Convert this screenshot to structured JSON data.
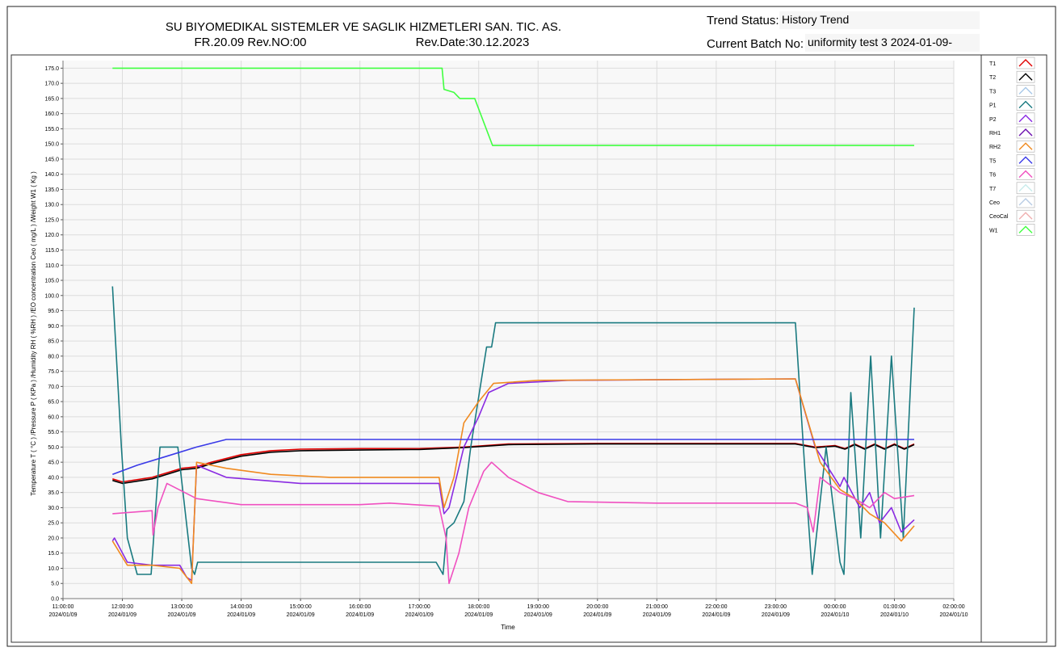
{
  "header": {
    "company": "SU BIYOMEDIKAL SISTEMLER VE SAGLIK HIZMETLERI SAN. TIC. AS.",
    "form": "FR.20.09 Rev.NO:00",
    "rev_date": "Rev.Date:30.12.2023",
    "status_label": "Trend Status:",
    "status_value": "History Trend",
    "batch_label": "Current Batch No:",
    "batch_value": "uniformity test 3 2024-01-09-"
  },
  "chart_data": {
    "type": "line",
    "y_label": "Temperature T ( °C ) /Pressure P ( KPa ) /Humidity RH ( %RH ) /EO concentration Ceo ( mg/L ) /Weight W1 ( Kg )",
    "x_label": "Time",
    "xlim": [
      "2024/01/09 11:00:00",
      "2024/01/10 02:00:00"
    ],
    "xticks": [
      {
        "value": "2024/01/09 11:00:00",
        "label": [
          "11:00:00",
          "2024/01/09"
        ]
      },
      {
        "value": "2024/01/09 12:00:00",
        "label": [
          "12:00:00",
          "2024/01/09"
        ]
      },
      {
        "value": "2024/01/09 13:00:00",
        "label": [
          "13:00:00",
          "2024/01/09"
        ]
      },
      {
        "value": "2024/01/09 14:00:00",
        "label": [
          "14:00:00",
          "2024/01/09"
        ]
      },
      {
        "value": "2024/01/09 15:00:00",
        "label": [
          "15:00:00",
          "2024/01/09"
        ]
      },
      {
        "value": "2024/01/09 16:00:00",
        "label": [
          "16:00:00",
          "2024/01/09"
        ]
      },
      {
        "value": "2024/01/09 17:00:00",
        "label": [
          "17:00:00",
          "2024/01/09"
        ]
      },
      {
        "value": "2024/01/09 18:00:00",
        "label": [
          "18:00:00",
          "2024/01/09"
        ]
      },
      {
        "value": "2024/01/09 19:00:00",
        "label": [
          "19:00:00",
          "2024/01/09"
        ]
      },
      {
        "value": "2024/01/09 20:00:00",
        "label": [
          "20:00:00",
          "2024/01/09"
        ]
      },
      {
        "value": "2024/01/09 21:00:00",
        "label": [
          "21:00:00",
          "2024/01/09"
        ]
      },
      {
        "value": "2024/01/09 22:00:00",
        "label": [
          "22:00:00",
          "2024/01/09"
        ]
      },
      {
        "value": "2024/01/09 23:00:00",
        "label": [
          "23:00:00",
          "2024/01/09"
        ]
      },
      {
        "value": "2024/01/10 00:00:00",
        "label": [
          "00:00:00",
          "2024/01/10"
        ]
      },
      {
        "value": "2024/01/10 01:00:00",
        "label": [
          "01:00:00",
          "2024/01/10"
        ]
      },
      {
        "value": "2024/01/10 02:00:00",
        "label": [
          "02:00:00",
          "2024/01/10"
        ]
      }
    ],
    "ylim": [
      0,
      177.5
    ],
    "yticks": [
      {
        "value": 0,
        "label": "0.0"
      },
      {
        "value": 5,
        "label": "5.0"
      },
      {
        "value": 10,
        "label": "10.0"
      },
      {
        "value": 15,
        "label": "15.0"
      },
      {
        "value": 20,
        "label": "20.0"
      },
      {
        "value": 25,
        "label": "25.0"
      },
      {
        "value": 30,
        "label": "30.0"
      },
      {
        "value": 35,
        "label": "35.0"
      },
      {
        "value": 40,
        "label": "40.0"
      },
      {
        "value": 45,
        "label": "45.0"
      },
      {
        "value": 50,
        "label": "50.0"
      },
      {
        "value": 55,
        "label": "55.0"
      },
      {
        "value": 60,
        "label": "60.0"
      },
      {
        "value": 65,
        "label": "65.0"
      },
      {
        "value": 70,
        "label": "70.0"
      },
      {
        "value": 75,
        "label": "75.0"
      },
      {
        "value": 80,
        "label": "80.0"
      },
      {
        "value": 85,
        "label": "85.0"
      },
      {
        "value": 90,
        "label": "90.0"
      },
      {
        "value": 95,
        "label": "95.0"
      },
      {
        "value": 100,
        "label": "100.0"
      },
      {
        "value": 105,
        "label": "105.0"
      },
      {
        "value": 110,
        "label": "110.0"
      },
      {
        "value": 115,
        "label": "115.0"
      },
      {
        "value": 120,
        "label": "120.0"
      },
      {
        "value": 125,
        "label": "125.0"
      },
      {
        "value": 130,
        "label": "130.0"
      },
      {
        "value": 135,
        "label": "135.0"
      },
      {
        "value": 140,
        "label": "140.0"
      },
      {
        "value": 145,
        "label": "145.0"
      },
      {
        "value": 150,
        "label": "150.0"
      },
      {
        "value": 155,
        "label": "155.0"
      },
      {
        "value": 160,
        "label": "160.0"
      },
      {
        "value": 165,
        "label": "165.0"
      },
      {
        "value": 170,
        "label": "170.0"
      },
      {
        "value": 175,
        "label": "175.0"
      }
    ],
    "grid": true,
    "legend": "right",
    "series": [
      {
        "name": "T1",
        "color": "#e00000",
        "x": [
          "2024/01/09 11:50:00",
          "2024/01/09 12:00:00",
          "2024/01/09 12:30:00",
          "2024/01/09 13:00:00",
          "2024/01/09 13:15:00",
          "2024/01/09 13:30:00",
          "2024/01/09 14:00:00",
          "2024/01/09 14:30:00",
          "2024/01/09 15:00:00",
          "2024/01/09 16:00:00",
          "2024/01/09 17:00:00",
          "2024/01/09 17:45:00",
          "2024/01/09 18:30:00",
          "2024/01/09 20:00:00",
          "2024/01/09 23:20:00",
          "2024/01/09 23:40:00",
          "2024/01/10 00:00:00",
          "2024/01/10 00:10:00",
          "2024/01/10 00:20:00",
          "2024/01/10 00:30:00",
          "2024/01/10 00:40:00",
          "2024/01/10 00:50:00",
          "2024/01/10 01:00:00",
          "2024/01/10 01:10:00",
          "2024/01/10 01:20:00"
        ],
        "values": [
          39.5,
          38.5,
          40,
          43,
          43.5,
          45,
          47.5,
          48.8,
          49.3,
          49.5,
          49.5,
          50,
          51,
          51.2,
          51.2,
          50,
          50.5,
          49.5,
          51,
          49.5,
          51,
          49.5,
          51,
          49.5,
          51
        ]
      },
      {
        "name": "T2",
        "color": "#000000",
        "x": [
          "2024/01/09 11:50:00",
          "2024/01/09 12:00:00",
          "2024/01/09 12:30:00",
          "2024/01/09 13:00:00",
          "2024/01/09 13:15:00",
          "2024/01/09 13:30:00",
          "2024/01/09 14:00:00",
          "2024/01/09 14:30:00",
          "2024/01/09 15:00:00",
          "2024/01/09 16:00:00",
          "2024/01/09 17:00:00",
          "2024/01/09 17:45:00",
          "2024/01/09 18:30:00",
          "2024/01/09 20:00:00",
          "2024/01/09 23:20:00",
          "2024/01/09 23:40:00",
          "2024/01/10 00:00:00",
          "2024/01/10 00:10:00",
          "2024/01/10 00:20:00",
          "2024/01/10 00:30:00",
          "2024/01/10 00:40:00",
          "2024/01/10 00:50:00",
          "2024/01/10 01:00:00",
          "2024/01/10 01:10:00",
          "2024/01/10 01:20:00"
        ],
        "values": [
          39,
          38,
          39.5,
          42.5,
          43,
          44.5,
          47,
          48.3,
          48.8,
          49,
          49.2,
          49.8,
          50.8,
          51,
          51,
          49.8,
          50.3,
          49.3,
          50.8,
          49.3,
          50.8,
          49.3,
          50.8,
          49.3,
          50.8
        ]
      },
      {
        "name": "T3",
        "color": "#a8c8e8",
        "x": [],
        "values": []
      },
      {
        "name": "P1",
        "color": "#1a7a80",
        "x": [
          "2024/01/09 11:50:00",
          "2024/01/09 11:59:00",
          "2024/01/09 12:05:00",
          "2024/01/09 12:15:00",
          "2024/01/09 12:29:00",
          "2024/01/09 12:38:00",
          "2024/01/09 12:56:00",
          "2024/01/09 13:10:00",
          "2024/01/09 13:13:00",
          "2024/01/09 13:16:00",
          "2024/01/09 17:17:00",
          "2024/01/09 17:24:00",
          "2024/01/09 17:28:00",
          "2024/01/09 17:35:00",
          "2024/01/09 17:45:00",
          "2024/01/09 17:52:00",
          "2024/01/09 18:08:00",
          "2024/01/09 18:13:00",
          "2024/01/09 18:17:00",
          "2024/01/09 23:20:00",
          "2024/01/09 23:30:00",
          "2024/01/09 23:37:00",
          "2024/01/09 23:51:00",
          "2024/01/10 00:05:00",
          "2024/01/10 00:09:00",
          "2024/01/10 00:16:00",
          "2024/01/10 00:26:00",
          "2024/01/10 00:36:00",
          "2024/01/10 00:46:00",
          "2024/01/10 00:57:00",
          "2024/01/10 01:09:00",
          "2024/01/10 01:20:00"
        ],
        "values": [
          103,
          50,
          20,
          8,
          8,
          50,
          50,
          10,
          8,
          12,
          12,
          8,
          23,
          25,
          32,
          50,
          83,
          83,
          91,
          91,
          40,
          8,
          50,
          12,
          8,
          68,
          20,
          80,
          20,
          80,
          20,
          96
        ]
      },
      {
        "name": "P2",
        "color": "#8a2be2",
        "x": [
          "2024/01/09 11:50:00",
          "2024/01/09 11:52:00",
          "2024/01/09 12:05:00",
          "2024/01/09 12:30:00",
          "2024/01/09 12:58:00",
          "2024/01/09 13:05:00",
          "2024/01/09 13:10:00",
          "2024/01/09 13:15:00",
          "2024/01/09 13:45:00",
          "2024/01/09 15:00:00",
          "2024/01/09 17:20:00",
          "2024/01/09 17:25:00",
          "2024/01/09 17:30:00",
          "2024/01/09 17:45:00",
          "2024/01/09 18:00:00",
          "2024/01/09 18:10:00",
          "2024/01/09 18:30:00",
          "2024/01/09 19:30:00",
          "2024/01/09 23:20:00",
          "2024/01/09 23:40:00",
          "2024/01/10 00:05:00",
          "2024/01/10 00:09:00",
          "2024/01/10 00:25:00",
          "2024/01/10 00:35:00",
          "2024/01/10 00:45:00",
          "2024/01/10 00:57:00",
          "2024/01/10 01:07:00",
          "2024/01/10 01:20:00"
        ],
        "values": [
          19,
          20,
          12,
          11,
          11,
          7,
          6,
          44,
          40,
          38,
          38,
          28,
          30,
          50,
          60,
          68,
          71,
          72,
          72.5,
          50,
          37,
          40,
          30,
          35,
          25,
          30,
          22,
          26
        ]
      },
      {
        "name": "RH1",
        "color": "#6a0dad",
        "x": [],
        "values": []
      },
      {
        "name": "RH2",
        "color": "#f08a20",
        "x": [
          "2024/01/09 11:50:00",
          "2024/01/09 12:05:00",
          "2024/01/09 12:30:00",
          "2024/01/09 12:58:00",
          "2024/01/09 13:10:00",
          "2024/01/09 13:15:00",
          "2024/01/09 13:45:00",
          "2024/01/09 14:30:00",
          "2024/01/09 15:30:00",
          "2024/01/09 17:20:00",
          "2024/01/09 17:25:00",
          "2024/01/09 17:35:00",
          "2024/01/09 17:45:00",
          "2024/01/09 18:00:00",
          "2024/01/09 18:15:00",
          "2024/01/09 19:00:00",
          "2024/01/09 23:20:00",
          "2024/01/09 23:45:00",
          "2024/01/10 00:05:00",
          "2024/01/10 00:20:00",
          "2024/01/10 00:35:00",
          "2024/01/10 00:50:00",
          "2024/01/10 01:07:00",
          "2024/01/10 01:20:00"
        ],
        "values": [
          19,
          11,
          11,
          10,
          5,
          45,
          43,
          41,
          40,
          40,
          30,
          40,
          58,
          65,
          71,
          72,
          72.5,
          45,
          36,
          33,
          28,
          25,
          19,
          24
        ]
      },
      {
        "name": "T5",
        "color": "#3a3ae8",
        "x": [
          "2024/01/09 11:50:00",
          "2024/01/09 12:15:00",
          "2024/01/09 12:45:00",
          "2024/01/09 13:15:00",
          "2024/01/09 13:45:00",
          "2024/01/09 18:00:00",
          "2024/01/09 23:20:00",
          "2024/01/10 01:20:00"
        ],
        "values": [
          41,
          44,
          47,
          50,
          52.5,
          52.5,
          52.5,
          52.5
        ]
      },
      {
        "name": "T6",
        "color": "#f050c0",
        "x": [
          "2024/01/09 11:50:00",
          "2024/01/09 12:30:00",
          "2024/01/09 12:31:00",
          "2024/01/09 12:36:00",
          "2024/01/09 12:45:00",
          "2024/01/09 13:15:00",
          "2024/01/09 14:00:00",
          "2024/01/09 16:00:00",
          "2024/01/09 16:30:00",
          "2024/01/09 17:20:00",
          "2024/01/09 17:27:00",
          "2024/01/09 17:30:00",
          "2024/01/09 17:40:00",
          "2024/01/09 17:50:00",
          "2024/01/09 18:05:00",
          "2024/01/09 18:13:00",
          "2024/01/09 18:30:00",
          "2024/01/09 19:00:00",
          "2024/01/09 19:30:00",
          "2024/01/09 21:00:00",
          "2024/01/09 23:20:00",
          "2024/01/09 23:32:00",
          "2024/01/09 23:38:00",
          "2024/01/09 23:45:00",
          "2024/01/10 00:05:00",
          "2024/01/10 00:20:00",
          "2024/01/10 00:35:00",
          "2024/01/10 00:50:00",
          "2024/01/10 01:00:00",
          "2024/01/10 01:20:00"
        ],
        "values": [
          28,
          29,
          21,
          30,
          38,
          33,
          31,
          31,
          31.5,
          30.5,
          20,
          5,
          15,
          30,
          42,
          45,
          40,
          35,
          32,
          31.5,
          31.5,
          30,
          22,
          40,
          35,
          33,
          30,
          35,
          33,
          34
        ]
      },
      {
        "name": "T7",
        "color": "#c8ecec",
        "x": [],
        "values": []
      },
      {
        "name": "Ceo",
        "color": "#b8cce4",
        "x": [],
        "values": []
      },
      {
        "name": "CeoCal",
        "color": "#f0b0b0",
        "x": [],
        "values": []
      },
      {
        "name": "W1",
        "color": "#40ff40",
        "x": [
          "2024/01/09 11:50:00",
          "2024/01/09 17:23:00",
          "2024/01/09 17:25:00",
          "2024/01/09 17:35:00",
          "2024/01/09 17:41:00",
          "2024/01/09 17:56:00",
          "2024/01/09 18:14:00",
          "2024/01/10 01:20:00"
        ],
        "values": [
          175,
          175,
          168,
          167,
          165,
          165,
          149.5,
          149.5
        ]
      }
    ]
  }
}
